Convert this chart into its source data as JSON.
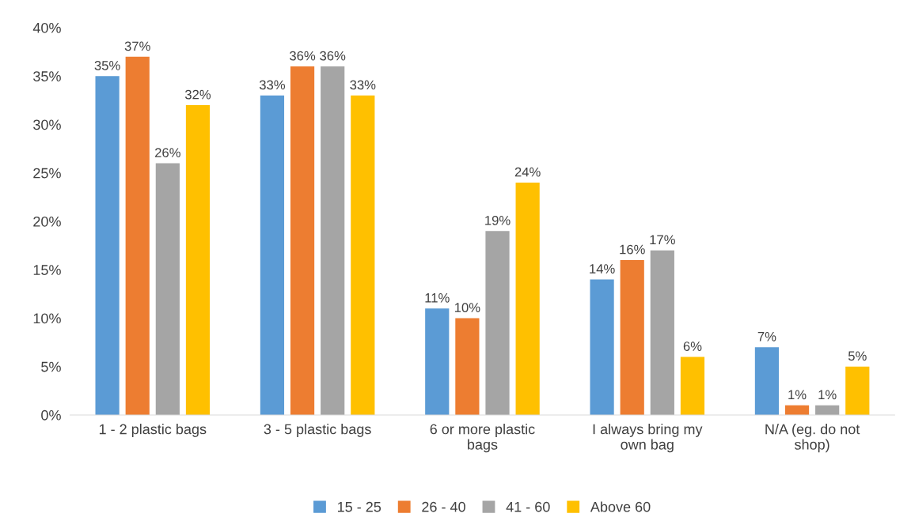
{
  "chart_data": {
    "type": "bar",
    "categories": [
      "1 - 2 plastic bags",
      "3 - 5 plastic bags",
      "6 or more plastic bags",
      "I always bring my own bag",
      "N/A (eg. do not shop)"
    ],
    "series": [
      {
        "name": "15 - 25",
        "color": "#5b9bd5",
        "values": [
          35,
          33,
          11,
          14,
          7
        ],
        "value_labels": [
          "35%",
          "33%",
          "11%",
          "14%",
          "7%"
        ]
      },
      {
        "name": "26 - 40",
        "color": "#ed7d31",
        "values": [
          37,
          36,
          10,
          16,
          1
        ],
        "value_labels": [
          "37%",
          "36%",
          "10%",
          "16%",
          "1%"
        ]
      },
      {
        "name": "41 - 60",
        "color": "#a5a5a5",
        "values": [
          26,
          36,
          19,
          17,
          1
        ],
        "value_labels": [
          "26%",
          "36%",
          "19%",
          "17%",
          "1%"
        ]
      },
      {
        "name": "Above 60",
        "color": "#ffc000",
        "values": [
          32,
          33,
          24,
          6,
          5
        ],
        "value_labels": [
          "32%",
          "33%",
          "24%",
          "6%",
          "5%"
        ]
      }
    ],
    "ylim": [
      0,
      40
    ],
    "yticks": [
      {
        "value": 0,
        "label": "0%"
      },
      {
        "value": 5,
        "label": "5%"
      },
      {
        "value": 10,
        "label": "10%"
      },
      {
        "value": 15,
        "label": "15%"
      },
      {
        "value": 20,
        "label": "20%"
      },
      {
        "value": 25,
        "label": "25%"
      },
      {
        "value": 30,
        "label": "30%"
      },
      {
        "value": 35,
        "label": "35%"
      },
      {
        "value": 40,
        "label": "40%"
      }
    ],
    "grid": false,
    "legend": "bottom"
  }
}
